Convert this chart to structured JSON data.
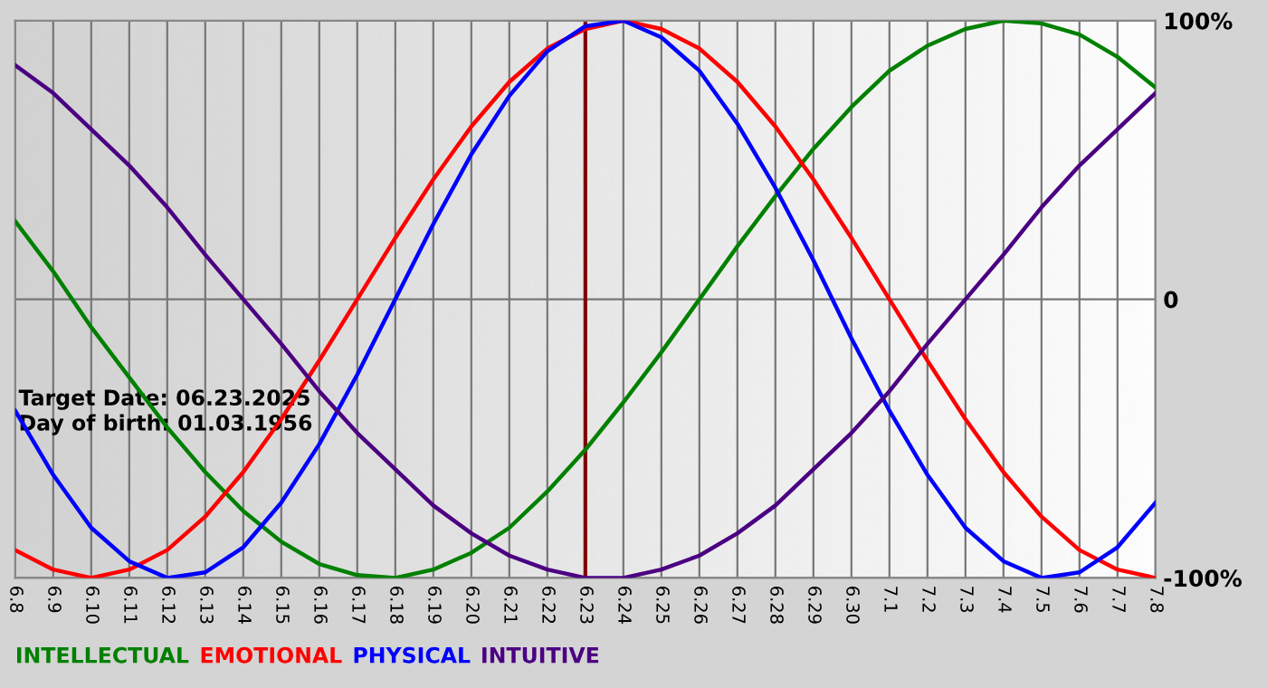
{
  "chart_data": {
    "type": "line",
    "categories": [
      "6.8",
      "6.9",
      "6.10",
      "6.11",
      "6.12",
      "6.13",
      "6.14",
      "6.15",
      "6.16",
      "6.17",
      "6.18",
      "6.19",
      "6.20",
      "6.21",
      "6.22",
      "6.23",
      "6.24",
      "6.25",
      "6.26",
      "6.27",
      "6.28",
      "6.29",
      "6.30",
      "7.1",
      "7.2",
      "7.3",
      "7.4",
      "7.5",
      "7.6",
      "7.7",
      "7.8"
    ],
    "series": [
      {
        "name": "INTELLECTUAL",
        "color": "#008000",
        "values": [
          28,
          10,
          -10,
          -28,
          -46,
          -62,
          -76,
          -87,
          -95,
          -99,
          -100,
          -97,
          -91,
          -82,
          -69,
          -54,
          -37,
          -19,
          0,
          19,
          37,
          54,
          69,
          82,
          91,
          97,
          100,
          99,
          95,
          87,
          76
        ]
      },
      {
        "name": "EMOTIONAL",
        "color": "#ff0000",
        "values": [
          -90,
          -97,
          -100,
          -97,
          -90,
          -78,
          -62,
          -43,
          -22,
          0,
          22,
          43,
          62,
          78,
          90,
          97,
          100,
          97,
          90,
          78,
          62,
          43,
          22,
          0,
          -22,
          -43,
          -62,
          -78,
          -90,
          -97,
          -100
        ]
      },
      {
        "name": "PHYSICAL",
        "color": "#0000ff",
        "values": [
          -40,
          -63,
          -82,
          -94,
          -100,
          -98,
          -89,
          -73,
          -52,
          -27,
          0,
          27,
          52,
          73,
          89,
          98,
          100,
          94,
          82,
          63,
          40,
          14,
          -14,
          -40,
          -63,
          -82,
          -94,
          -100,
          -98,
          -89,
          -73
        ]
      },
      {
        "name": "INTUITIVE",
        "color": "#4b0082",
        "values": [
          84,
          74,
          61,
          48,
          33,
          16,
          0,
          -16,
          -33,
          -48,
          -61,
          -74,
          -84,
          -92,
          -97,
          -100,
          -100,
          -97,
          -92,
          -84,
          -74,
          -61,
          -48,
          -33,
          -16,
          0,
          16,
          33,
          48,
          61,
          74
        ]
      }
    ],
    "ylim": [
      -100,
      100
    ],
    "yticks": [
      {
        "value": 100,
        "label": "100%"
      },
      0,
      {
        "value": -100,
        "label": "-100%"
      }
    ],
    "grid": true,
    "legend": "bottom",
    "marker": "none",
    "line_style": "solid",
    "ref_lines": [
      {
        "axis": "x",
        "value": "6.23",
        "color": "#800000"
      }
    ],
    "annotations": [
      "Target Date: 06.23.2025",
      "Day of birth: 01.03.1956"
    ]
  }
}
